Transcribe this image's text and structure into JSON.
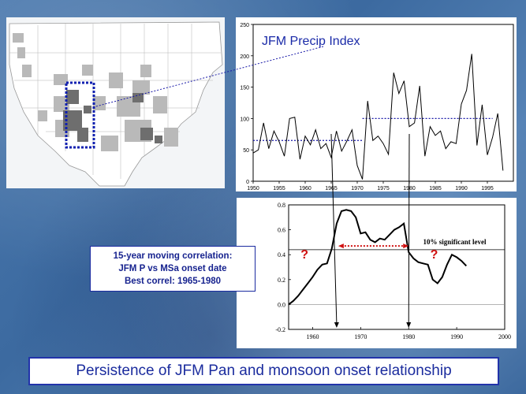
{
  "annotations": {
    "corr_line1": "15-year moving correlation:",
    "corr_line2": "JFM P vs MSa onset date",
    "corr_line3": "Best correl: 1965-1980",
    "title": "Persistence of JFM Pan and monsoon onset relationship",
    "question_mark": "?"
  },
  "colors": {
    "line": "#000000",
    "reference_dotted": "#1a1aa8",
    "red_marks": "#d01010",
    "title_text": "#1b2c9e"
  },
  "chart_data": [
    {
      "type": "line",
      "title": "JFM Precip Index",
      "xlabel": "",
      "ylabel": "",
      "xlim": [
        1950,
        2000
      ],
      "ylim": [
        0,
        250
      ],
      "xticks": [
        1950,
        1955,
        1960,
        1965,
        1970,
        1975,
        1980,
        1985,
        1990,
        1995
      ],
      "yticks": [
        0,
        50,
        100,
        150,
        200,
        250
      ],
      "grid": false,
      "series": [
        {
          "x": [
            1950,
            1951,
            1952,
            1953,
            1954,
            1955,
            1956,
            1957,
            1958,
            1959,
            1960,
            1961,
            1962,
            1963,
            1964,
            1965,
            1966,
            1967,
            1968,
            1969,
            1970,
            1971,
            1972,
            1973,
            1974,
            1975,
            1976,
            1977,
            1978,
            1979,
            1980,
            1981,
            1982,
            1983,
            1984,
            1985,
            1986,
            1987,
            1988,
            1989,
            1990,
            1991,
            1992,
            1993,
            1994,
            1995,
            1996,
            1997,
            1998,
            1999
          ],
          "values": [
            45,
            50,
            93,
            52,
            80,
            63,
            40,
            100,
            102,
            35,
            72,
            58,
            82,
            52,
            60,
            38,
            80,
            48,
            64,
            82,
            25,
            3,
            128,
            65,
            72,
            60,
            43,
            173,
            140,
            160,
            87,
            93,
            152,
            40,
            87,
            73,
            80,
            52,
            63,
            60,
            123,
            145,
            203,
            57,
            122,
            42,
            70,
            108,
            17,
            null
          ]
        }
      ],
      "reference_lines": [
        {
          "x_from": 1950,
          "x_to": 1971,
          "value": 65
        },
        {
          "x_from": 1971,
          "x_to": 1996,
          "value": 100
        }
      ]
    },
    {
      "type": "line",
      "xlim": [
        1955,
        2000
      ],
      "ylim": [
        -0.2,
        0.8
      ],
      "xticks": [
        1960,
        1970,
        1980,
        1990,
        2000
      ],
      "yticks": [
        -0.2,
        0.0,
        0.2,
        0.4,
        0.6,
        0.8
      ],
      "grid": false,
      "annotation": "10% significant level",
      "significance_level": 0.44,
      "zero_line": 0.0,
      "best_period": [
        1965,
        1980
      ],
      "series": [
        {
          "x": [
            1955,
            1956,
            1957,
            1958,
            1959,
            1960,
            1961,
            1962,
            1963,
            1964,
            1965,
            1966,
            1967,
            1968,
            1969,
            1970,
            1971,
            1972,
            1973,
            1974,
            1975,
            1976,
            1977,
            1978,
            1979,
            1980,
            1981,
            1982,
            1983,
            1984,
            1985,
            1986,
            1987,
            1988,
            1989,
            1990,
            1991,
            1992
          ],
          "values": [
            0.0,
            0.03,
            0.07,
            0.12,
            0.17,
            0.22,
            0.28,
            0.32,
            0.33,
            0.45,
            0.65,
            0.75,
            0.76,
            0.75,
            0.7,
            0.57,
            0.58,
            0.52,
            0.5,
            0.53,
            0.52,
            0.56,
            0.6,
            0.62,
            0.65,
            0.42,
            0.37,
            0.34,
            0.33,
            0.32,
            0.2,
            0.17,
            0.22,
            0.32,
            0.4,
            0.38,
            0.35,
            0.31
          ]
        }
      ]
    }
  ]
}
